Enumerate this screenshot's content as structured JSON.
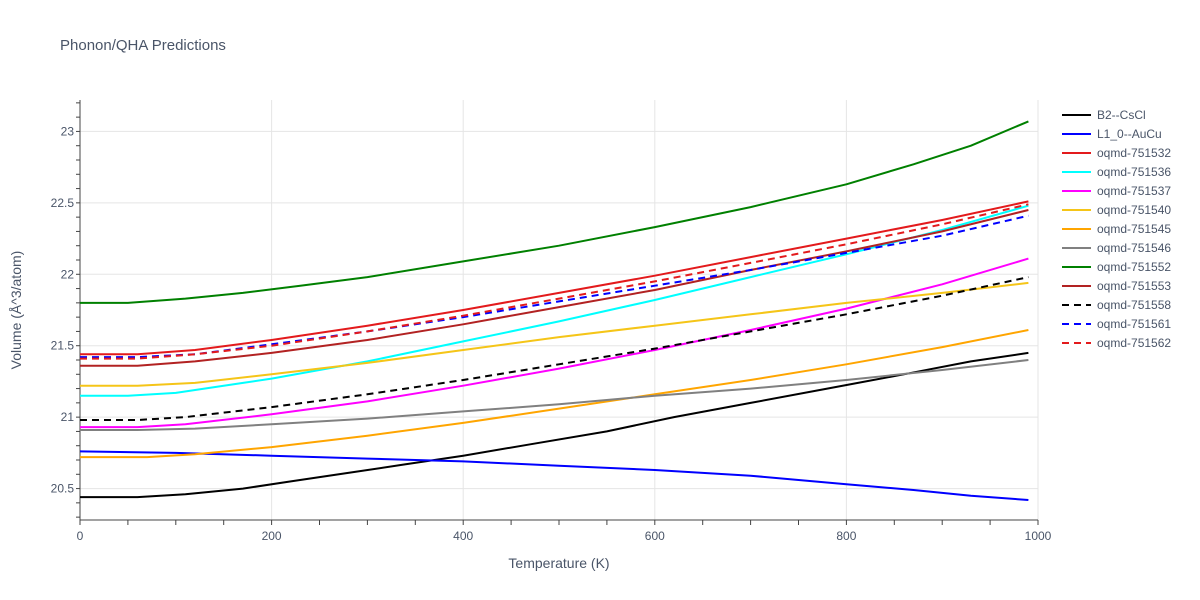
{
  "chart_data": {
    "type": "line",
    "title": "Phonon/QHA Predictions",
    "xlabel": "Temperature (K)",
    "ylabel": "Volume (Å^3/atom)",
    "xlim": [
      0,
      1000
    ],
    "ylim": [
      20.28,
      23.22
    ],
    "xticks": [
      0,
      200,
      400,
      600,
      800,
      1000
    ],
    "yticks": [
      20.5,
      21,
      21.5,
      22,
      22.5,
      23
    ],
    "grid": true,
    "legend_position": "right",
    "series": [
      {
        "name": "B2--CsCl",
        "color": "#000000",
        "dash": false,
        "x": [
          0,
          60,
          110,
          170,
          220,
          280,
          340,
          400,
          470,
          550,
          620,
          700,
          780,
          860,
          930,
          990
        ],
        "y": [
          20.44,
          20.44,
          20.46,
          20.5,
          20.55,
          20.61,
          20.67,
          20.73,
          20.81,
          20.9,
          21.0,
          21.1,
          21.2,
          21.3,
          21.39,
          21.45
        ]
      },
      {
        "name": "L1_0--AuCu",
        "color": "#0000ff",
        "dash": false,
        "x": [
          0,
          100,
          200,
          300,
          400,
          500,
          600,
          700,
          800,
          870,
          930,
          990
        ],
        "y": [
          20.76,
          20.75,
          20.73,
          20.71,
          20.69,
          20.66,
          20.63,
          20.59,
          20.53,
          20.49,
          20.45,
          20.42
        ]
      },
      {
        "name": "oqmd-751532",
        "color": "#e31a1c",
        "dash": false,
        "x": [
          0,
          60,
          120,
          200,
          300,
          400,
          500,
          600,
          700,
          800,
          900,
          990
        ],
        "y": [
          21.44,
          21.44,
          21.47,
          21.54,
          21.64,
          21.75,
          21.87,
          21.99,
          22.12,
          22.25,
          22.38,
          22.51
        ]
      },
      {
        "name": "oqmd-751536",
        "color": "#00ffff",
        "dash": false,
        "x": [
          0,
          50,
          100,
          200,
          300,
          400,
          500,
          600,
          700,
          800,
          900,
          990
        ],
        "y": [
          21.15,
          21.15,
          21.17,
          21.27,
          21.39,
          21.53,
          21.67,
          21.82,
          21.98,
          22.14,
          22.31,
          22.48
        ]
      },
      {
        "name": "oqmd-751537",
        "color": "#ff00ff",
        "dash": false,
        "x": [
          0,
          60,
          110,
          200,
          300,
          400,
          500,
          600,
          700,
          800,
          900,
          990
        ],
        "y": [
          20.93,
          20.93,
          20.95,
          21.02,
          21.11,
          21.22,
          21.34,
          21.47,
          21.61,
          21.76,
          21.93,
          22.11
        ]
      },
      {
        "name": "oqmd-751540",
        "color": "#f5c518",
        "dash": false,
        "x": [
          0,
          60,
          120,
          200,
          300,
          400,
          500,
          600,
          700,
          800,
          900,
          990
        ],
        "y": [
          21.22,
          21.22,
          21.24,
          21.3,
          21.38,
          21.47,
          21.56,
          21.64,
          21.72,
          21.8,
          21.87,
          21.94
        ]
      },
      {
        "name": "oqmd-751545",
        "color": "#ffa500",
        "dash": false,
        "x": [
          0,
          70,
          120,
          200,
          300,
          400,
          500,
          600,
          700,
          800,
          900,
          990
        ],
        "y": [
          20.72,
          20.72,
          20.74,
          20.79,
          20.87,
          20.96,
          21.06,
          21.16,
          21.26,
          21.37,
          21.49,
          21.61
        ]
      },
      {
        "name": "oqmd-751546",
        "color": "#808080",
        "dash": false,
        "x": [
          0,
          60,
          120,
          200,
          300,
          400,
          500,
          600,
          700,
          800,
          900,
          990
        ],
        "y": [
          20.91,
          20.91,
          20.92,
          20.95,
          20.99,
          21.04,
          21.09,
          21.15,
          21.2,
          21.26,
          21.33,
          21.4
        ]
      },
      {
        "name": "oqmd-751552",
        "color": "#008000",
        "dash": false,
        "x": [
          0,
          50,
          110,
          170,
          230,
          300,
          400,
          500,
          600,
          700,
          800,
          870,
          930,
          990
        ],
        "y": [
          21.8,
          21.8,
          21.83,
          21.87,
          21.92,
          21.98,
          22.09,
          22.2,
          22.33,
          22.47,
          22.63,
          22.77,
          22.9,
          23.07
        ]
      },
      {
        "name": "oqmd-751553",
        "color": "#b22222",
        "dash": false,
        "x": [
          0,
          60,
          120,
          200,
          300,
          400,
          500,
          600,
          700,
          800,
          900,
          990
        ],
        "y": [
          21.36,
          21.36,
          21.39,
          21.45,
          21.54,
          21.65,
          21.77,
          21.89,
          22.03,
          22.16,
          22.3,
          22.45
        ]
      },
      {
        "name": "oqmd-751558",
        "color": "#000000",
        "dash": true,
        "x": [
          0,
          60,
          110,
          200,
          300,
          400,
          500,
          600,
          700,
          800,
          900,
          990
        ],
        "y": [
          20.98,
          20.98,
          21.0,
          21.07,
          21.16,
          21.26,
          21.37,
          21.48,
          21.6,
          21.72,
          21.85,
          21.98
        ]
      },
      {
        "name": "oqmd-751561",
        "color": "#0000ff",
        "dash": true,
        "x": [
          0,
          60,
          120,
          200,
          300,
          400,
          500,
          600,
          700,
          800,
          900,
          990
        ],
        "y": [
          21.42,
          21.42,
          21.44,
          21.51,
          21.6,
          21.7,
          21.81,
          21.92,
          22.03,
          22.15,
          22.27,
          22.41
        ]
      },
      {
        "name": "oqmd-751562",
        "color": "#e31a1c",
        "dash": true,
        "x": [
          0,
          60,
          120,
          200,
          300,
          400,
          500,
          600,
          700,
          800,
          900,
          990
        ],
        "y": [
          21.41,
          21.41,
          21.44,
          21.5,
          21.6,
          21.71,
          21.83,
          21.95,
          22.08,
          22.21,
          22.35,
          22.49
        ]
      }
    ]
  }
}
